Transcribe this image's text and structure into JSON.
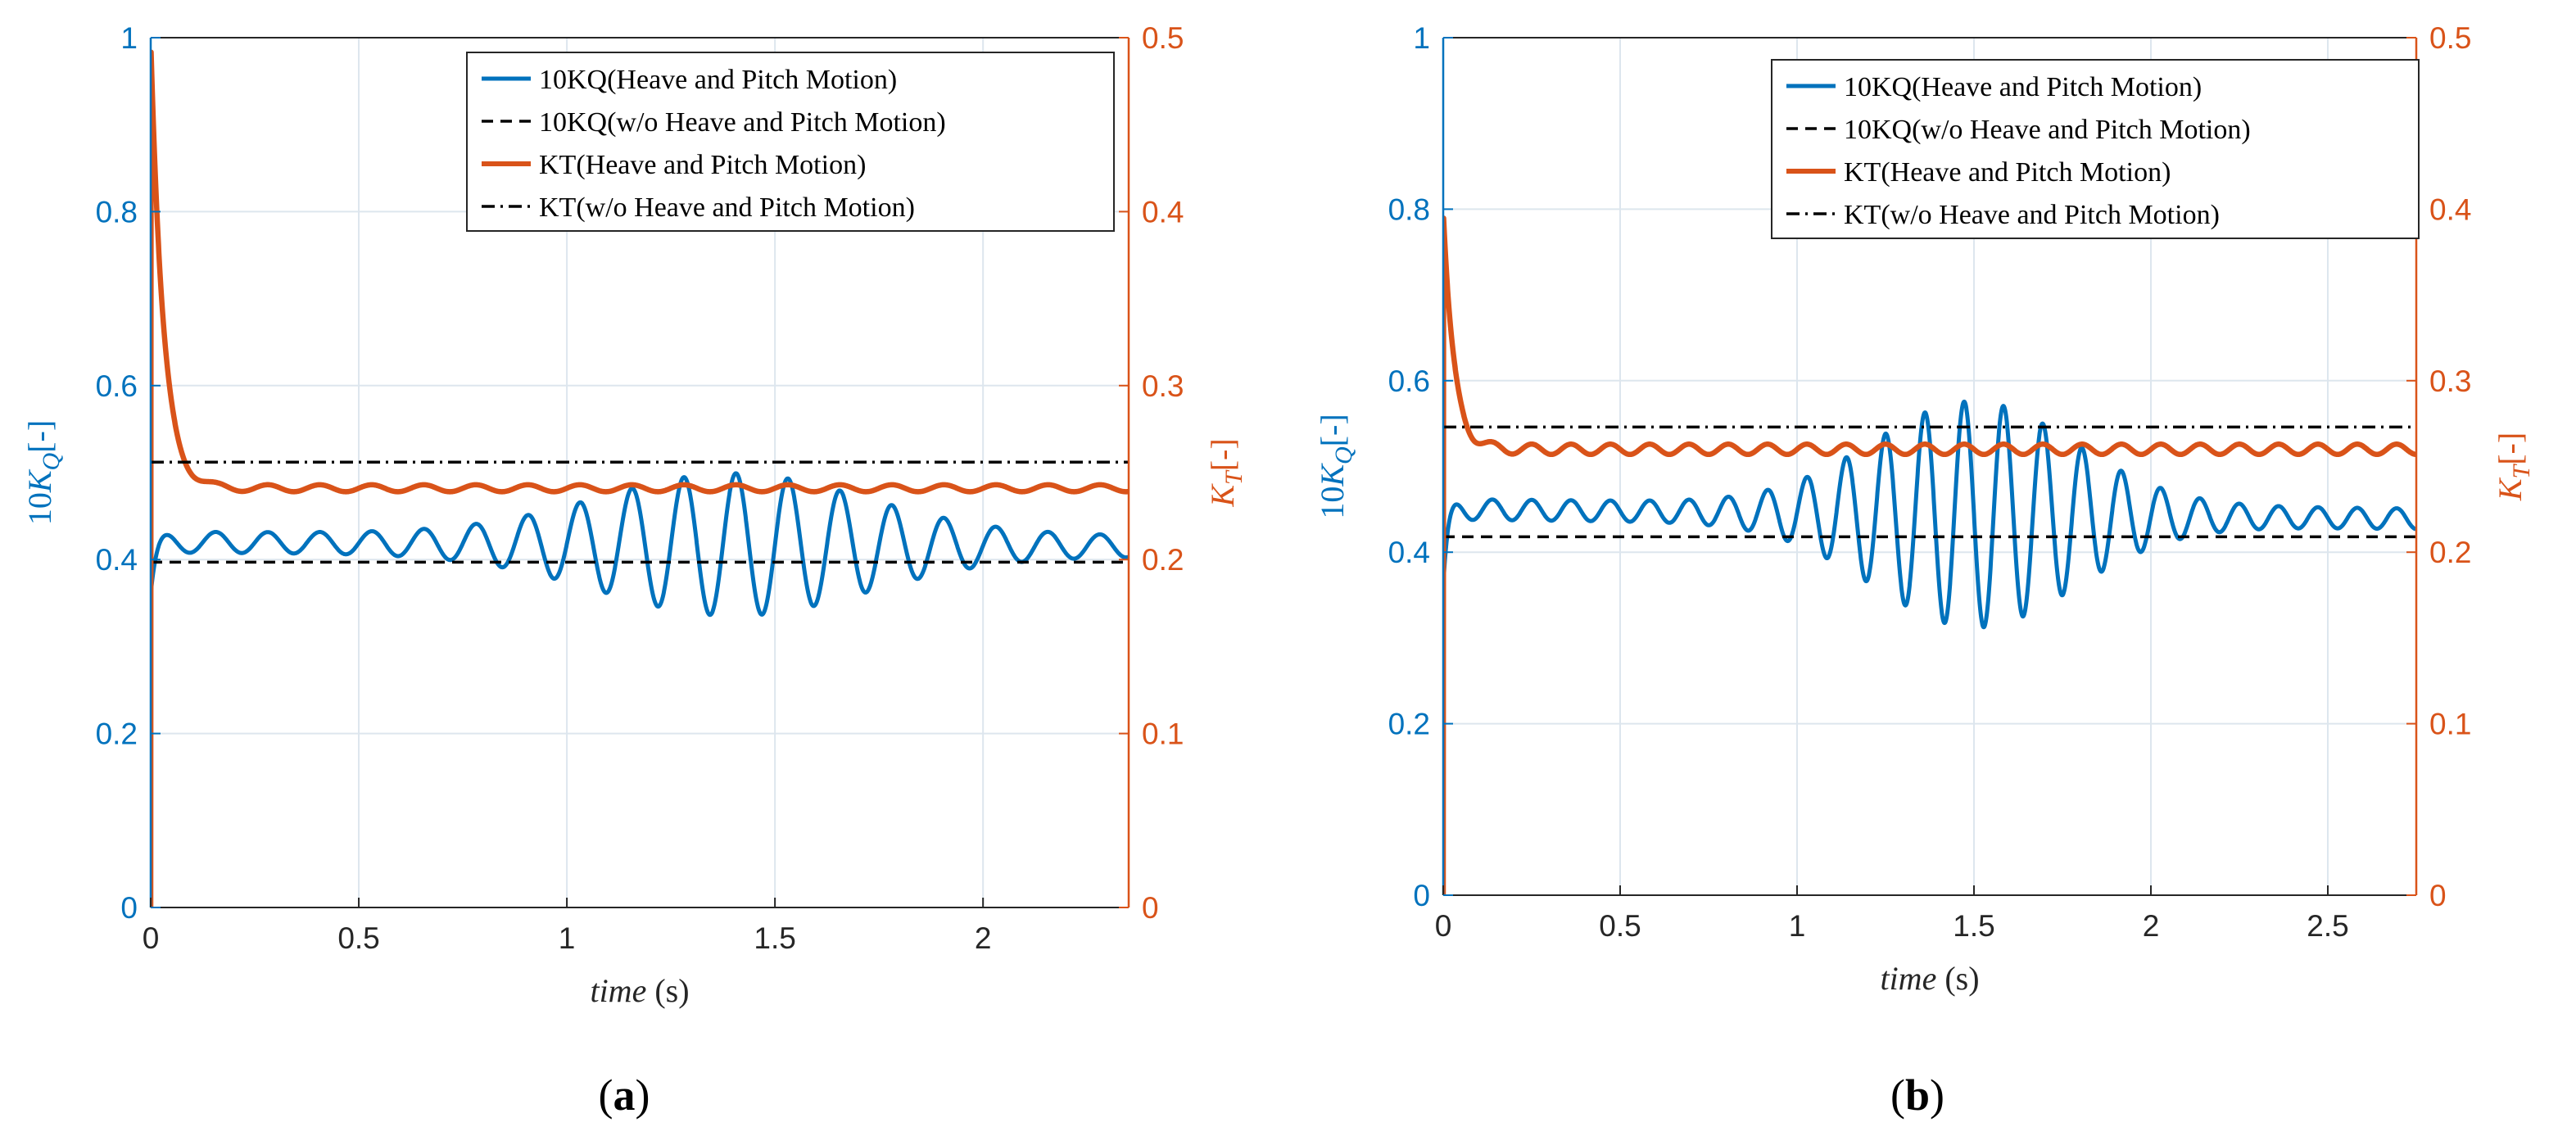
{
  "colors": {
    "blue": "#0072BD",
    "orange": "#D95319",
    "grid": "#dde6ee",
    "black": "#000000"
  },
  "legend": [
    {
      "label": "10KQ(Heave and Pitch Motion)",
      "style": "blue-solid"
    },
    {
      "label": "10KQ(w/o Heave and Pitch Motion)",
      "style": "black-dashed"
    },
    {
      "label": "KT(Heave and Pitch Motion)",
      "style": "orange-solid"
    },
    {
      "label": "KT(w/o Heave and Pitch Motion)",
      "style": "black-dashdot"
    }
  ],
  "chart_data": [
    {
      "type": "line",
      "panel": "(a)",
      "xlabel_main": "time",
      "xlabel_unit": "(s)",
      "ylabel_left": "10K_Q[-]",
      "ylabel_right": "K_T[-]",
      "xlim": [
        0,
        2.35
      ],
      "ylim_left": [
        0,
        1
      ],
      "ylim_right": [
        0,
        0.5
      ],
      "xticks": [
        0,
        0.5,
        1,
        1.5,
        2
      ],
      "xtick_labels": [
        "0",
        "0.5",
        "1",
        "1.5",
        "2"
      ],
      "yticks_left": [
        "0",
        "0.2",
        "0.4",
        "0.6",
        "0.8",
        "1"
      ],
      "yticks_right": [
        "0",
        "0.1",
        "0.2",
        "0.3",
        "0.4",
        "0.5"
      ],
      "series": [
        {
          "name": "10KQ(Heave and Pitch Motion)",
          "axis": "left",
          "model": {
            "start_value": 0.36,
            "base": 0.42,
            "base_end": 0.415,
            "osc_freq": 8.0,
            "small_amp": 0.012,
            "env_peak_amp": 0.07,
            "env_center": 1.4,
            "env_width": 0.45
          }
        },
        {
          "name": "10KQ(w/o Heave and Pitch Motion)",
          "axis": "left",
          "value": 0.397
        },
        {
          "name": "KT(Heave and Pitch Motion)",
          "axis": "right",
          "model": {
            "start_value": 0.5,
            "base": 0.241,
            "osc_freq": 8.0,
            "amp": 0.002
          }
        },
        {
          "name": "KT(w/o Heave and Pitch Motion)",
          "axis": "right",
          "value": 0.256
        }
      ]
    },
    {
      "type": "line",
      "panel": "(b)",
      "xlabel_main": "time",
      "xlabel_unit": "(s)",
      "ylabel_left": "10K_Q[-]",
      "ylabel_right": "K_T[-]",
      "xlim": [
        0,
        2.75
      ],
      "ylim_left": [
        0,
        1
      ],
      "ylim_right": [
        0,
        0.5
      ],
      "xticks": [
        0,
        0.5,
        1,
        1.5,
        2,
        2.5
      ],
      "xtick_labels": [
        "0",
        "0.5",
        "1",
        "1.5",
        "2",
        "2.5"
      ],
      "yticks_left": [
        "0",
        "0.2",
        "0.4",
        "0.6",
        "0.8",
        "1"
      ],
      "yticks_right": [
        "0",
        "0.1",
        "0.2",
        "0.3",
        "0.4",
        "0.5"
      ],
      "series": [
        {
          "name": "10KQ(Heave and Pitch Motion)",
          "axis": "left",
          "model": {
            "start_value": 0.36,
            "base": 0.45,
            "base_end": 0.44,
            "osc_freq": 9.0,
            "small_amp": 0.012,
            "env_peak_amp": 0.12,
            "env_center": 1.5,
            "env_width": 0.4
          }
        },
        {
          "name": "10KQ(w/o Heave and Pitch Motion)",
          "axis": "left",
          "value": 0.418
        },
        {
          "name": "KT(Heave and Pitch Motion)",
          "axis": "right",
          "model": {
            "start_value": 0.4,
            "base": 0.26,
            "osc_freq": 9.0,
            "amp": 0.003
          }
        },
        {
          "name": "KT(w/o Heave and Pitch Motion)",
          "axis": "right",
          "value": 0.273
        }
      ]
    }
  ]
}
